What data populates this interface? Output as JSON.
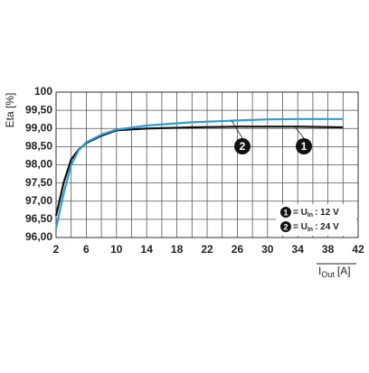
{
  "chart_data": {
    "type": "line",
    "y_label": "Eta [%]",
    "x_label": {
      "main": "I",
      "sub": "Out",
      "unit": "[A]"
    },
    "x": [
      2,
      3,
      4,
      5,
      6,
      8,
      10,
      14,
      20,
      26,
      30,
      34,
      40
    ],
    "series": [
      {
        "marker": "1",
        "color": "#111111",
        "values": [
          96.6,
          97.5,
          98.15,
          98.42,
          98.6,
          98.8,
          98.95,
          99.0,
          99.03,
          99.05,
          99.05,
          99.05,
          99.03
        ]
      },
      {
        "marker": "2",
        "color": "#2f9bd6",
        "values": [
          96.25,
          97.2,
          98.0,
          98.4,
          98.62,
          98.83,
          98.97,
          99.08,
          99.17,
          99.22,
          99.25,
          99.26,
          99.26
        ]
      }
    ],
    "legend": [
      {
        "marker": "1",
        "symbol": "= U",
        "sub": "In",
        "rest": ": 12 V"
      },
      {
        "marker": "2",
        "symbol": "= U",
        "sub": "In",
        "rest": ": 24 V"
      }
    ],
    "xlim": [
      2,
      42
    ],
    "xticks": [
      2,
      6,
      10,
      14,
      18,
      22,
      26,
      30,
      34,
      38,
      42
    ],
    "ylim": [
      96,
      100
    ],
    "yticks": [
      {
        "value": 96,
        "label": "96,00"
      },
      {
        "value": 96.5,
        "label": "96,50"
      },
      {
        "value": 97,
        "label": "97,00"
      },
      {
        "value": 97.5,
        "label": "97,50"
      },
      {
        "value": 98,
        "label": "98,00"
      },
      {
        "value": 98.5,
        "label": "98,50"
      },
      {
        "value": 99,
        "label": "99,00"
      },
      {
        "value": 99.5,
        "label": "99,50"
      },
      {
        "value": 100,
        "label": "100"
      }
    ],
    "grid": true
  }
}
